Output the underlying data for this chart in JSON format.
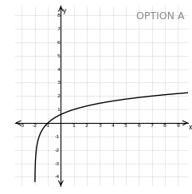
{
  "title": "OPTION A",
  "xlim": [
    -3.5,
    9.8
  ],
  "ylim": [
    -4.7,
    8.7
  ],
  "xticks": [
    -3,
    -2,
    -1,
    1,
    2,
    3,
    4,
    5,
    6,
    7,
    8,
    9
  ],
  "yticks": [
    -4,
    -3,
    -2,
    -1,
    1,
    2,
    3,
    4,
    5,
    6,
    7,
    8
  ],
  "xtick_labels": [
    "-3",
    "-2",
    "-1",
    "1",
    "2",
    "3",
    "4",
    "5",
    "6",
    "7",
    "8",
    "9"
  ],
  "ytick_labels": [
    "-4",
    "-3",
    "-2",
    "-1",
    "1",
    "2",
    "3",
    "4",
    "5",
    "6",
    "7",
    "8"
  ],
  "asymptote": -2,
  "curve_color": "#000000",
  "grid_color": "#aaaaaa",
  "axis_color": "#000000",
  "background_color": "#ffffff",
  "title_fontsize": 9,
  "title_color": "#888888",
  "tick_fontsize": 4.5
}
